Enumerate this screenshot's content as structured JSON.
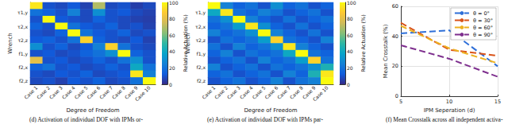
{
  "chart_data": [
    {
      "type": "heatmap",
      "caption": "(d) Activation of individual DOF with IPMs or-",
      "x_label": "Degree of Freedom",
      "y_label": "Wrench",
      "categories": [
        "Case 1",
        "Case 2",
        "Case 3",
        "Case 4",
        "Case 5",
        "Case 6",
        "Case 7",
        "Case 8",
        "Case 9",
        "Case 10"
      ],
      "y_categories": [
        null,
        "τ1,y",
        null,
        "τ2,x",
        null,
        "τ2,z",
        null,
        "f1,y",
        null,
        "f2,x",
        null,
        "f2,z"
      ],
      "cells": [
        [
          95,
          10,
          8,
          12,
          6,
          70,
          8,
          10,
          5,
          8
        ],
        [
          20,
          15,
          10,
          25,
          8,
          30,
          10,
          12,
          8,
          6
        ],
        [
          10,
          100,
          12,
          10,
          8,
          15,
          10,
          8,
          6,
          5
        ],
        [
          15,
          10,
          100,
          20,
          12,
          10,
          15,
          8,
          10,
          6
        ],
        [
          10,
          8,
          15,
          100,
          20,
          12,
          10,
          15,
          8,
          10
        ],
        [
          12,
          15,
          10,
          20,
          90,
          15,
          10,
          8,
          12,
          6
        ],
        [
          30,
          10,
          15,
          8,
          12,
          25,
          90,
          20,
          10,
          8
        ],
        [
          10,
          12,
          8,
          10,
          15,
          20,
          30,
          100,
          15,
          10
        ],
        [
          80,
          10,
          12,
          8,
          10,
          15,
          10,
          20,
          30,
          10
        ],
        [
          15,
          20,
          10,
          12,
          8,
          10,
          15,
          10,
          40,
          20
        ],
        [
          10,
          8,
          12,
          10,
          15,
          8,
          10,
          12,
          95,
          25
        ],
        [
          8,
          10,
          6,
          12,
          10,
          15,
          8,
          10,
          20,
          100
        ]
      ],
      "colorbar": {
        "label": "Relative Actuation (%)",
        "range": [
          0,
          100
        ],
        "ticks": [
          0,
          20,
          40,
          60,
          80,
          100
        ]
      }
    },
    {
      "type": "heatmap",
      "caption": "(e) Activation of individual DOF with IPMs par-",
      "x_label": "Degree of Freedom",
      "y_label": "Wrench",
      "categories": [
        "Case 1",
        "Case 2",
        "Case 3",
        "Case 4",
        "Case 5",
        "Case 6",
        "Case 7",
        "Case 8",
        "Case 9",
        "Case 10"
      ],
      "y_categories": [
        null,
        "τ1,y",
        null,
        "τ2,x",
        null,
        "τ2,z",
        null,
        "f1,y",
        null,
        "f2,x",
        null,
        "f2,z"
      ],
      "cells": [
        [
          100,
          25,
          15,
          20,
          10,
          30,
          15,
          20,
          10,
          15
        ],
        [
          40,
          95,
          20,
          15,
          25,
          20,
          10,
          15,
          20,
          10
        ],
        [
          20,
          30,
          100,
          25,
          15,
          10,
          20,
          10,
          15,
          20
        ],
        [
          15,
          20,
          35,
          95,
          30,
          15,
          10,
          20,
          10,
          15
        ],
        [
          25,
          15,
          20,
          30,
          100,
          25,
          15,
          10,
          20,
          10
        ],
        [
          10,
          20,
          15,
          20,
          35,
          90,
          20,
          15,
          10,
          25
        ],
        [
          20,
          10,
          25,
          15,
          20,
          30,
          95,
          25,
          15,
          10
        ],
        [
          15,
          25,
          10,
          20,
          15,
          20,
          40,
          100,
          20,
          15
        ],
        [
          10,
          15,
          20,
          10,
          25,
          15,
          20,
          35,
          90,
          20
        ],
        [
          25,
          10,
          15,
          20,
          10,
          20,
          15,
          20,
          30,
          45
        ],
        [
          15,
          20,
          10,
          15,
          20,
          10,
          25,
          15,
          45,
          95
        ],
        [
          10,
          15,
          20,
          10,
          15,
          25,
          10,
          20,
          25,
          100
        ]
      ],
      "colorbar": {
        "label": "Relative Actuation (%)",
        "range": [
          0,
          100
        ],
        "ticks": [
          0,
          20,
          40,
          60,
          80,
          100
        ]
      }
    },
    {
      "type": "line",
      "caption": "(f) Mean Crosstalk across all independent activa-",
      "x_label": "IPM Seperation (d)",
      "y_label": "Mean Crosstalk (%)",
      "x": [
        5,
        10,
        15
      ],
      "xlim": [
        5,
        15
      ],
      "xticks": [
        5,
        10,
        15
      ],
      "ylim": [
        0,
        60
      ],
      "yticks": [
        0,
        20,
        40,
        60
      ],
      "grid": true,
      "legend": "upper right",
      "line_style": "dashed",
      "series": [
        {
          "name": "θ = 0°",
          "color": "#2e6fd8",
          "values": [
            42,
            44,
            20
          ]
        },
        {
          "name": "θ = 30°",
          "color": "#d95319",
          "values": [
            49,
            31,
            27
          ]
        },
        {
          "name": "θ = 60°",
          "color": "#edb120",
          "values": [
            47,
            32,
            22
          ]
        },
        {
          "name": "θ = 90°",
          "color": "#7e2f8e",
          "values": [
            34,
            25,
            13
          ]
        }
      ]
    }
  ]
}
